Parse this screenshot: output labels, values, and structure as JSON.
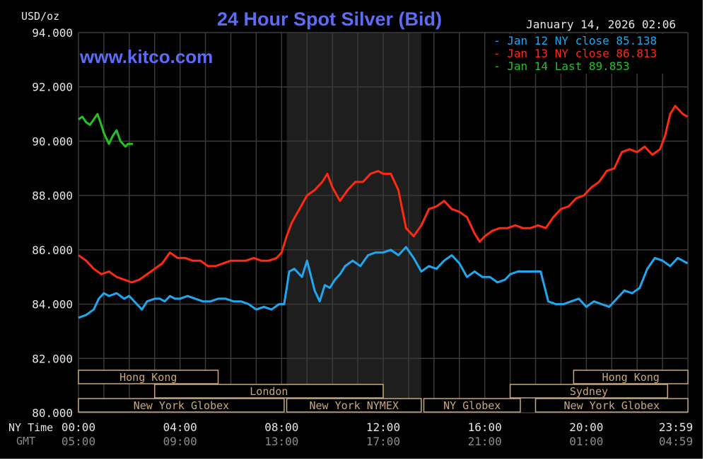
{
  "header": {
    "unit_label": "USD/oz",
    "title": "24 Hour Spot Silver (Bid)",
    "timestamp": "January 14, 2026 02:06",
    "watermark": "www.kitco.com"
  },
  "legend": [
    {
      "label": "Jan 12 NY close 85.138",
      "color": "#1ea8f0"
    },
    {
      "label": "Jan 13 NY close 86.813",
      "color": "#ff2a10"
    },
    {
      "label": "Jan 14 Last 89.853",
      "color": "#22c322"
    }
  ],
  "axis": {
    "row_label_ny": "NY Time",
    "row_label_gmt": "GMT"
  },
  "sessions": [
    {
      "label": "Hong Kong",
      "start": 0,
      "end": 5.5,
      "row": 0
    },
    {
      "label": "Hong Kong",
      "start": 19.5,
      "end": 24,
      "row": 0
    },
    {
      "label": "London",
      "start": 3,
      "end": 12,
      "row": 1
    },
    {
      "label": "Sydney",
      "start": 17,
      "end": 23.2,
      "row": 1
    },
    {
      "label": "New York Globex",
      "start": 0,
      "end": 8.1,
      "row": 2
    },
    {
      "label": "New York NYMEX",
      "start": 8.2,
      "end": 13.5,
      "row": 2
    },
    {
      "label": "NY Globex",
      "start": 13.6,
      "end": 17.4,
      "row": 2
    },
    {
      "label": "New York Globex",
      "start": 18,
      "end": 24,
      "row": 2
    }
  ],
  "colors": {
    "background": "#000000",
    "grid": "#3a3a3a",
    "nymex_shade": "#1e1e1e",
    "title": "#5b6cf7",
    "session_box": "#c8a878",
    "text": "#e6e6e6",
    "gmt_text": "#8c8c8c"
  },
  "chart_data": {
    "type": "line",
    "title": "24 Hour Spot Silver (Bid)",
    "ylabel": "USD/oz",
    "ylim": [
      80,
      94
    ],
    "yticks": [
      80,
      82,
      84,
      86,
      88,
      90,
      92,
      94
    ],
    "ytick_labels": [
      "80.000",
      "82.000",
      "84.000",
      "86.000",
      "88.000",
      "90.000",
      "92.000",
      "94.000"
    ],
    "xlim": [
      0,
      24
    ],
    "xticks": [
      0,
      4,
      8,
      12,
      16,
      20,
      24
    ],
    "xtick_labels_ny": [
      "00:00",
      "04:00",
      "08:00",
      "12:00",
      "16:00",
      "20:00",
      "23:59"
    ],
    "xtick_labels_gmt": [
      "05:00",
      "09:00",
      "13:00",
      "17:00",
      "21:00",
      "01:00",
      "04:59"
    ],
    "shaded_region": [
      8.2,
      13.5
    ],
    "grid": true,
    "legend_position": "top-right",
    "series": [
      {
        "name": "Jan 12 NY close 85.138",
        "color": "#1ea8f0",
        "x": [
          0,
          0.3,
          0.6,
          0.8,
          1.0,
          1.2,
          1.5,
          1.8,
          2.0,
          2.3,
          2.5,
          2.7,
          3.0,
          3.2,
          3.4,
          3.6,
          3.8,
          4.0,
          4.3,
          4.6,
          4.9,
          5.2,
          5.5,
          5.8,
          6.1,
          6.4,
          6.7,
          7.0,
          7.3,
          7.6,
          7.9,
          8.1,
          8.3,
          8.5,
          8.8,
          9.0,
          9.3,
          9.5,
          9.7,
          9.9,
          10.1,
          10.3,
          10.5,
          10.8,
          11.1,
          11.4,
          11.7,
          12.0,
          12.3,
          12.6,
          12.9,
          13.2,
          13.5,
          13.8,
          14.1,
          14.4,
          14.7,
          15.0,
          15.3,
          15.6,
          15.9,
          16.2,
          16.5,
          16.8,
          17.0,
          17.3,
          17.6,
          17.8,
          18.0,
          18.2,
          18.5,
          18.8,
          19.1,
          19.4,
          19.7,
          20.0,
          20.3,
          20.6,
          20.9,
          21.2,
          21.5,
          21.8,
          22.1,
          22.4,
          22.7,
          23.0,
          23.3,
          23.6,
          23.99
        ],
        "y": [
          83.5,
          83.6,
          83.8,
          84.2,
          84.4,
          84.3,
          84.4,
          84.2,
          84.3,
          84.0,
          83.8,
          84.1,
          84.2,
          84.2,
          84.1,
          84.3,
          84.2,
          84.2,
          84.3,
          84.2,
          84.1,
          84.1,
          84.2,
          84.2,
          84.1,
          84.1,
          84.0,
          83.8,
          83.9,
          83.8,
          84.0,
          84.0,
          85.2,
          85.3,
          85.0,
          85.6,
          84.5,
          84.1,
          84.7,
          84.6,
          84.9,
          85.1,
          85.4,
          85.6,
          85.4,
          85.8,
          85.9,
          85.9,
          86.0,
          85.8,
          86.1,
          85.7,
          85.2,
          85.4,
          85.3,
          85.6,
          85.8,
          85.5,
          85.0,
          85.2,
          85.0,
          85.0,
          84.8,
          84.9,
          85.1,
          85.2,
          85.2,
          85.2,
          85.2,
          85.2,
          84.1,
          84.0,
          84.0,
          84.1,
          84.2,
          83.9,
          84.1,
          84.0,
          83.9,
          84.2,
          84.5,
          84.4,
          84.6,
          85.3,
          85.7,
          85.6,
          85.4,
          85.7,
          85.5
        ]
      },
      {
        "name": "Jan 13 NY close 86.813",
        "color": "#ff2a10",
        "x": [
          0,
          0.3,
          0.6,
          0.9,
          1.2,
          1.5,
          1.8,
          2.1,
          2.4,
          2.7,
          3.0,
          3.3,
          3.6,
          3.9,
          4.2,
          4.5,
          4.8,
          5.1,
          5.4,
          5.7,
          6.0,
          6.3,
          6.6,
          6.9,
          7.2,
          7.5,
          7.8,
          8.0,
          8.2,
          8.4,
          8.7,
          9.0,
          9.3,
          9.6,
          9.8,
          10.0,
          10.3,
          10.6,
          10.9,
          11.2,
          11.5,
          11.8,
          12.0,
          12.3,
          12.6,
          12.9,
          13.2,
          13.5,
          13.8,
          14.1,
          14.4,
          14.7,
          15.0,
          15.3,
          15.6,
          15.8,
          16.0,
          16.3,
          16.6,
          16.9,
          17.2,
          17.5,
          17.8,
          18.1,
          18.4,
          18.7,
          19.0,
          19.3,
          19.6,
          19.9,
          20.2,
          20.5,
          20.8,
          21.1,
          21.4,
          21.7,
          22.0,
          22.3,
          22.6,
          22.9,
          23.1,
          23.3,
          23.5,
          23.8,
          23.99
        ],
        "y": [
          85.8,
          85.6,
          85.3,
          85.1,
          85.2,
          85.0,
          84.9,
          84.8,
          84.9,
          85.1,
          85.3,
          85.5,
          85.9,
          85.7,
          85.7,
          85.6,
          85.6,
          85.4,
          85.4,
          85.5,
          85.6,
          85.6,
          85.6,
          85.7,
          85.6,
          85.6,
          85.7,
          85.9,
          86.5,
          87.0,
          87.5,
          88.0,
          88.2,
          88.5,
          88.8,
          88.3,
          87.8,
          88.2,
          88.5,
          88.5,
          88.8,
          88.9,
          88.8,
          88.8,
          88.2,
          86.8,
          86.5,
          86.9,
          87.5,
          87.6,
          87.8,
          87.5,
          87.4,
          87.2,
          86.6,
          86.3,
          86.5,
          86.7,
          86.8,
          86.8,
          86.9,
          86.8,
          86.8,
          86.9,
          86.8,
          87.2,
          87.5,
          87.6,
          87.9,
          88.0,
          88.3,
          88.5,
          88.9,
          89.0,
          89.6,
          89.7,
          89.6,
          89.8,
          89.5,
          89.7,
          90.2,
          91.0,
          91.3,
          91.0,
          90.9
        ]
      },
      {
        "name": "Jan 14 Last 89.853",
        "color": "#22c322",
        "x": [
          0,
          0.15,
          0.3,
          0.45,
          0.6,
          0.75,
          0.9,
          1.0,
          1.1,
          1.2,
          1.35,
          1.5,
          1.65,
          1.75,
          1.85,
          1.95,
          2.05,
          2.15
        ],
        "y": [
          90.8,
          90.9,
          90.7,
          90.6,
          90.8,
          91.0,
          90.6,
          90.3,
          90.1,
          89.9,
          90.2,
          90.4,
          90.0,
          89.9,
          89.8,
          89.9,
          89.9,
          89.9
        ]
      }
    ]
  }
}
